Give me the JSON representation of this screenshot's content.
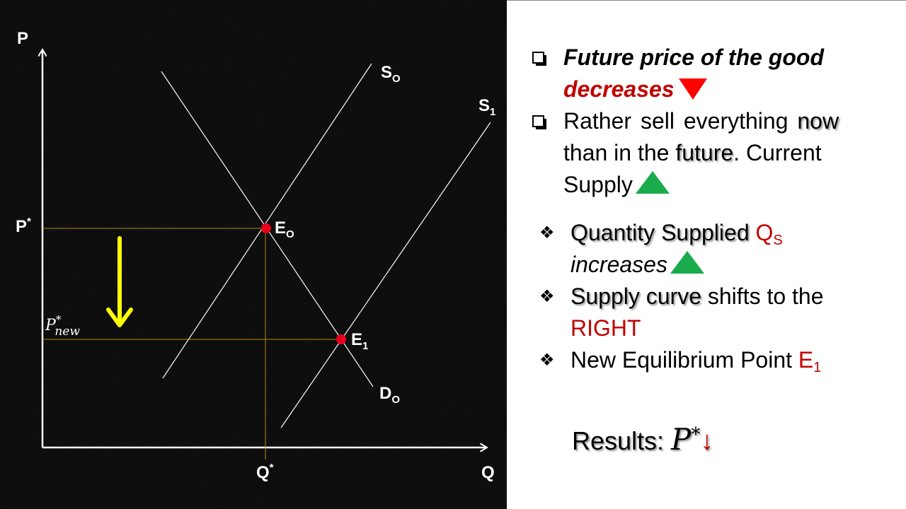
{
  "diagram": {
    "axis_y": "P",
    "axis_x": "Q",
    "s0_label": "S",
    "s0_sub": "O",
    "s1_label": "S",
    "s1_sub": "1",
    "d0_label": "D",
    "d0_sub": "O",
    "e0_label": "E",
    "e0_sub": "O",
    "e1_label": "E",
    "e1_sub": "1",
    "p_star": "P",
    "p_star_sup": "*",
    "q_star": "Q",
    "q_star_sup": "*",
    "p_new_base": "P",
    "p_new_sup": "*",
    "p_new_sub": "new",
    "colors": {
      "equilibrium_dot": "#e8001c",
      "guide_lines": "#b8860b",
      "arrow": "#ffff00",
      "curves": "#ffffff"
    }
  },
  "panel": {
    "line1a": "Future price of the good",
    "line1b": "decreases",
    "line2a_pre": "Rather sell everything ",
    "line2a_hl": "now",
    "line2b_pre": "than in the ",
    "line2b_hl": "future",
    "line2b_post": ". Current",
    "line2c": "Supply",
    "b1_hl": "Quantity Supplied",
    "b1_q": "Q",
    "b1_q_sub": "S",
    "b1_line2": "increases",
    "b2_hl": "Supply curve",
    "b2_rest": " shifts to the",
    "b2_line2": "RIGHT",
    "b3_text": "New Equilibrium Point ",
    "b3_e": "E",
    "b3_e_sub": "1",
    "diamond_symbol": "❖",
    "results_label": "Results: ",
    "results_math": "P",
    "results_sup": "*",
    "results_arrow": "↓",
    "colors": {
      "emphasis_red": "#c00000",
      "down_triangle": "#ff0000",
      "up_triangle": "#1aab4c"
    }
  }
}
